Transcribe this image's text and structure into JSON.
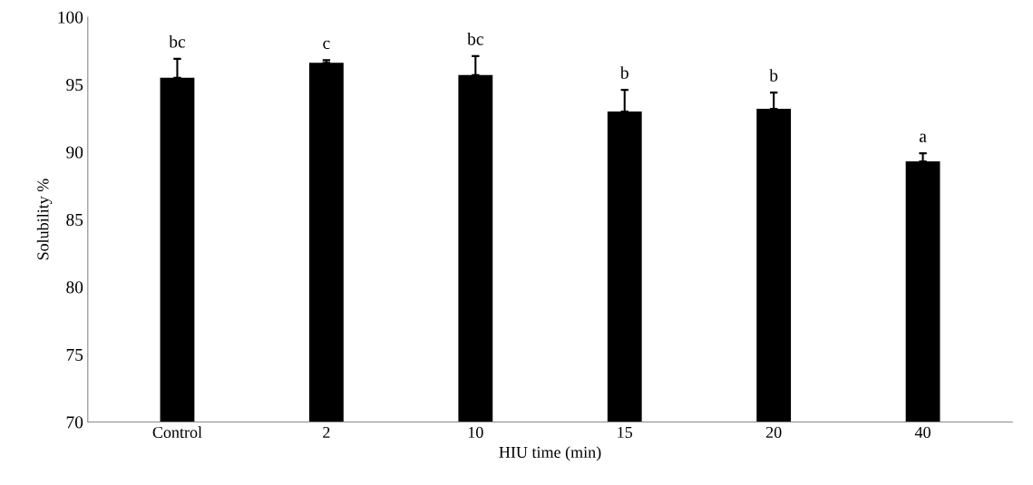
{
  "chart_data": {
    "type": "bar",
    "xlabel": "HIU time (min)",
    "ylabel": "Solubility %",
    "categories": [
      "Control",
      "2",
      "10",
      "15",
      "20",
      "40"
    ],
    "values": [
      95.5,
      96.6,
      95.7,
      93.0,
      93.2,
      89.3
    ],
    "errors": [
      [
        95.5,
        96.9
      ],
      [
        96.6,
        96.8
      ],
      [
        95.7,
        97.1
      ],
      [
        93.0,
        94.6
      ],
      [
        93.2,
        94.4
      ],
      [
        89.3,
        89.9
      ]
    ],
    "color": "#000000",
    "ylim": [
      70,
      100
    ],
    "yticks": [
      70,
      75,
      80,
      85,
      90,
      95,
      100
    ],
    "grid": false,
    "legend": false,
    "annotations": [
      "bc",
      "c",
      "bc",
      "b",
      "b",
      "a"
    ]
  }
}
